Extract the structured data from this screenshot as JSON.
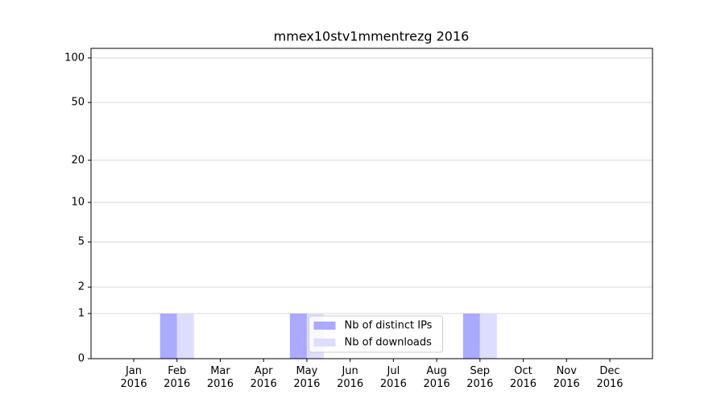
{
  "chart_data": {
    "type": "bar",
    "title": "mmex10stv1mmentrezg 2016",
    "categories": [
      "Jan\n2016",
      "Feb\n2016",
      "Mar\n2016",
      "Apr\n2016",
      "May\n2016",
      "Jun\n2016",
      "Jul\n2016",
      "Aug\n2016",
      "Sep\n2016",
      "Oct\n2016",
      "Nov\n2016",
      "Dec\n2016"
    ],
    "series": [
      {
        "name": "Nb of distinct IPs",
        "color": "#aaaaff",
        "values": [
          0,
          1,
          0,
          0,
          1,
          0,
          0,
          0,
          1,
          0,
          0,
          0
        ]
      },
      {
        "name": "Nb of downloads",
        "color": "#ddddff",
        "values": [
          0,
          1,
          0,
          0,
          1,
          0,
          0,
          0,
          1,
          0,
          0,
          0
        ]
      }
    ],
    "yscale": "log1p",
    "ylim": [
      0,
      116
    ],
    "yticks": [
      0,
      1,
      2,
      5,
      10,
      20,
      50,
      100
    ],
    "grid": true,
    "legend": "lower center"
  }
}
